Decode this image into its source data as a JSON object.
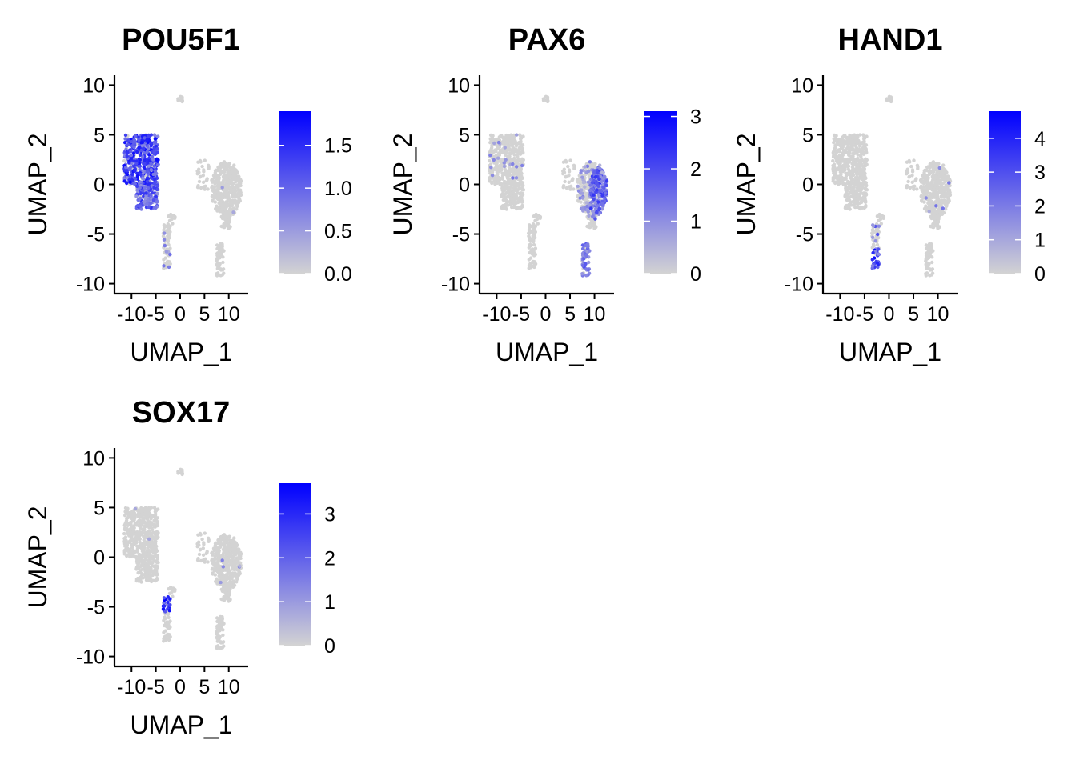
{
  "chart_data": [
    {
      "type": "scatter",
      "title": "POU5F1",
      "xlabel": "UMAP_1",
      "ylabel": "UMAP_2",
      "xlim": [
        -13.5,
        14
      ],
      "ylim": [
        -11,
        11
      ],
      "x_ticks": [
        -10,
        -5,
        0,
        5,
        10
      ],
      "x_tick_labels": [
        "-10",
        "-5",
        "0",
        "5",
        "10"
      ],
      "y_ticks": [
        -10,
        -5,
        0,
        5,
        10
      ],
      "y_tick_labels": [
        "-10",
        "-5",
        "0",
        "5",
        "10"
      ],
      "color_low": "#d3d3d3",
      "color_high": "#0000ff",
      "colorbar_max": 1.9,
      "colorbar_ticks": [
        0.0,
        0.5,
        1.0,
        1.5
      ],
      "colorbar_tick_labels": [
        "0.0",
        "0.5",
        "1.0",
        "1.5"
      ],
      "high_regions": [
        {
          "cluster": "left_top",
          "expression": 1.2,
          "fraction": 0.85
        },
        {
          "cluster": "left_bottom",
          "expression": 1.0,
          "fraction": 0.8
        },
        {
          "cluster": "right_big",
          "expression": 0.5,
          "fraction": 0.01
        },
        {
          "cluster": "center_strip",
          "expression": 0.6,
          "fraction": 0.12
        }
      ],
      "grid": false,
      "legend_position": "right"
    },
    {
      "type": "scatter",
      "title": "PAX6",
      "xlabel": "UMAP_1",
      "ylabel": "UMAP_2",
      "xlim": [
        -13.5,
        14
      ],
      "ylim": [
        -11,
        11
      ],
      "x_ticks": [
        -10,
        -5,
        0,
        5,
        10
      ],
      "x_tick_labels": [
        "-10",
        "-5",
        "0",
        "5",
        "10"
      ],
      "y_ticks": [
        -10,
        -5,
        0,
        5,
        10
      ],
      "y_tick_labels": [
        "-10",
        "-5",
        "0",
        "5",
        "10"
      ],
      "color_low": "#d3d3d3",
      "color_high": "#0000ff",
      "colorbar_max": 3.1,
      "colorbar_ticks": [
        0,
        1,
        2,
        3
      ],
      "colorbar_tick_labels": [
        "0",
        "1",
        "2",
        "3"
      ],
      "high_regions": [
        {
          "cluster": "right_big_east",
          "expression": 1.6,
          "fraction": 0.9
        },
        {
          "cluster": "right_big",
          "expression": 0.9,
          "fraction": 0.25
        },
        {
          "cluster": "right_bottom_strip",
          "expression": 1.3,
          "fraction": 0.85
        },
        {
          "cluster": "left_top",
          "expression": 1.0,
          "fraction": 0.03
        }
      ],
      "grid": false,
      "legend_position": "right"
    },
    {
      "type": "scatter",
      "title": "HAND1",
      "xlabel": "UMAP_1",
      "ylabel": "UMAP_2",
      "xlim": [
        -13.5,
        14
      ],
      "ylim": [
        -11,
        11
      ],
      "x_ticks": [
        -10,
        -5,
        0,
        5,
        10
      ],
      "x_tick_labels": [
        "-10",
        "-5",
        "0",
        "5",
        "10"
      ],
      "y_ticks": [
        -10,
        -5,
        0,
        5,
        10
      ],
      "y_tick_labels": [
        "-10",
        "-5",
        "0",
        "5",
        "10"
      ],
      "color_low": "#d3d3d3",
      "color_high": "#0000ff",
      "colorbar_max": 4.8,
      "colorbar_ticks": [
        0,
        1,
        2,
        3,
        4
      ],
      "colorbar_tick_labels": [
        "0",
        "1",
        "2",
        "3",
        "4"
      ],
      "high_regions": [
        {
          "cluster": "center_strip_low",
          "expression": 3.2,
          "fraction": 0.95
        },
        {
          "cluster": "center_strip",
          "expression": 2.0,
          "fraction": 0.2
        },
        {
          "cluster": "right_big",
          "expression": 1.5,
          "fraction": 0.01
        }
      ],
      "grid": false,
      "legend_position": "right"
    },
    {
      "type": "scatter",
      "title": "SOX17",
      "xlabel": "UMAP_1",
      "ylabel": "UMAP_2",
      "xlim": [
        -13.5,
        14
      ],
      "ylim": [
        -11,
        11
      ],
      "x_ticks": [
        -10,
        -5,
        0,
        5,
        10
      ],
      "x_tick_labels": [
        "-10",
        "-5",
        "0",
        "5",
        "10"
      ],
      "y_ticks": [
        -10,
        -5,
        0,
        5,
        10
      ],
      "y_tick_labels": [
        "-10",
        "-5",
        "0",
        "5",
        "10"
      ],
      "color_low": "#d3d3d3",
      "color_high": "#0000ff",
      "colorbar_max": 3.7,
      "colorbar_ticks": [
        0,
        1,
        2,
        3
      ],
      "colorbar_tick_labels": [
        "0",
        "1",
        "2",
        "3"
      ],
      "high_regions": [
        {
          "cluster": "center_strip_top",
          "expression": 2.6,
          "fraction": 0.9
        },
        {
          "cluster": "right_big",
          "expression": 1.0,
          "fraction": 0.01
        },
        {
          "cluster": "left_top",
          "expression": 1.0,
          "fraction": 0.005
        }
      ],
      "grid": false,
      "legend_position": "right"
    }
  ]
}
